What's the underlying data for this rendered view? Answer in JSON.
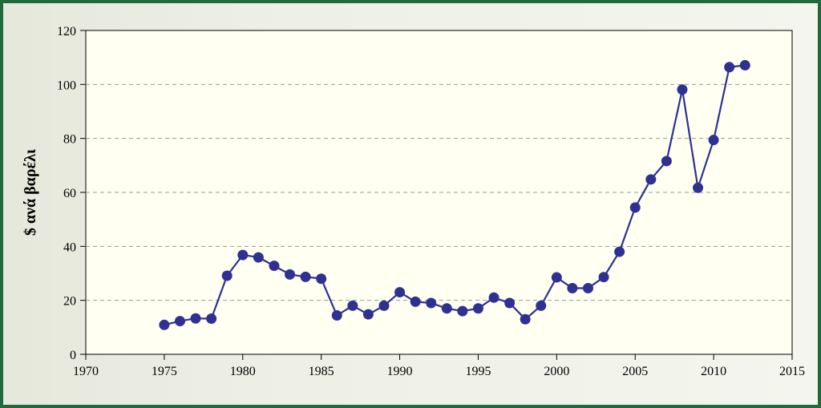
{
  "chart_data": {
    "type": "line",
    "title": "",
    "xlabel": "",
    "ylabel": "$ ανά βαρέλι",
    "xlim": [
      1970,
      2015
    ],
    "ylim": [
      0,
      120
    ],
    "x_ticks": [
      1970,
      1975,
      1980,
      1985,
      1990,
      1995,
      2000,
      2005,
      2010,
      2015
    ],
    "y_ticks": [
      0,
      20,
      40,
      60,
      80,
      100,
      120
    ],
    "grid": "horizontal dashed",
    "legend": "none",
    "colors": {
      "line": "#2e3192",
      "marker": "#2e3192",
      "plot_bg": "#fffff2",
      "frame": "#1f6b3c",
      "grid": "#999999"
    },
    "series": [
      {
        "x": [
          1975,
          1976,
          1977,
          1978,
          1979,
          1980,
          1981,
          1982,
          1983,
          1984,
          1985,
          1986,
          1987,
          1988,
          1989,
          1990,
          1991,
          1992,
          1993,
          1994,
          1995,
          1996,
          1997,
          1998,
          1999,
          2000,
          2001,
          2002,
          2003,
          2004,
          2005,
          2006,
          2007,
          2008,
          2009,
          2010,
          2011,
          2012
        ],
        "values": [
          10.9,
          12.3,
          13.3,
          13.2,
          29.1,
          36.8,
          35.9,
          32.8,
          29.6,
          28.7,
          28.0,
          14.4,
          18.0,
          14.8,
          18.0,
          23.0,
          19.5,
          19.0,
          17.0,
          16.0,
          17.0,
          21.0,
          19.0,
          13.0,
          18.0,
          28.5,
          24.5,
          24.5,
          28.6,
          38.0,
          54.4,
          64.8,
          71.6,
          98.1,
          61.7,
          79.4,
          106.4,
          107.1
        ]
      }
    ]
  }
}
